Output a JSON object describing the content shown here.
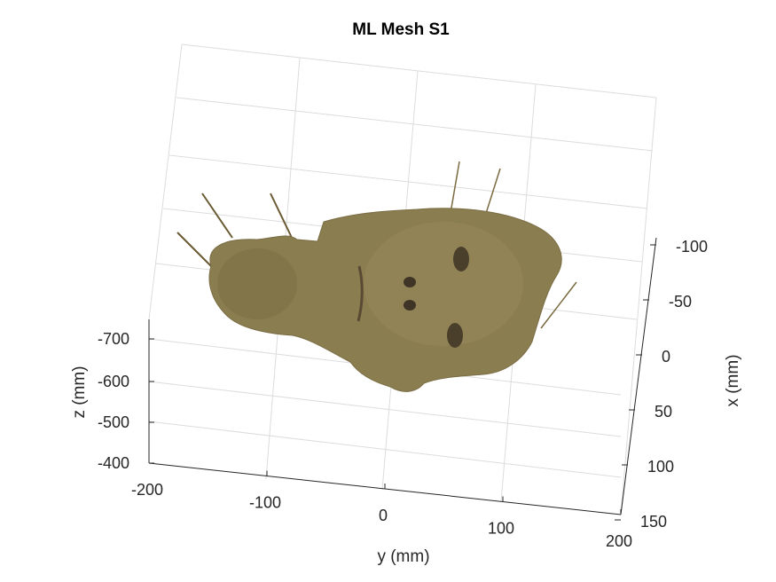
{
  "chart_data": {
    "type": "scatter",
    "title": "ML Mesh S1",
    "xlabel": "x (mm)",
    "ylabel": "y (mm)",
    "zlabel": "z (mm)",
    "xlim": [
      -125,
      150
    ],
    "ylim": [
      -200,
      200
    ],
    "zlim": [
      -400,
      -720
    ],
    "x_ticks": [
      "-100",
      "-50",
      "0",
      "50",
      "100",
      "150"
    ],
    "y_ticks": [
      "-200",
      "-100",
      "0",
      "100",
      "200"
    ],
    "z_ticks": [
      "-700",
      "-600",
      "-500",
      "-400"
    ],
    "grid": true,
    "surface": "textured 3D face mesh",
    "surface_color": "#8a7d50",
    "line_color": "#6b5b35"
  }
}
